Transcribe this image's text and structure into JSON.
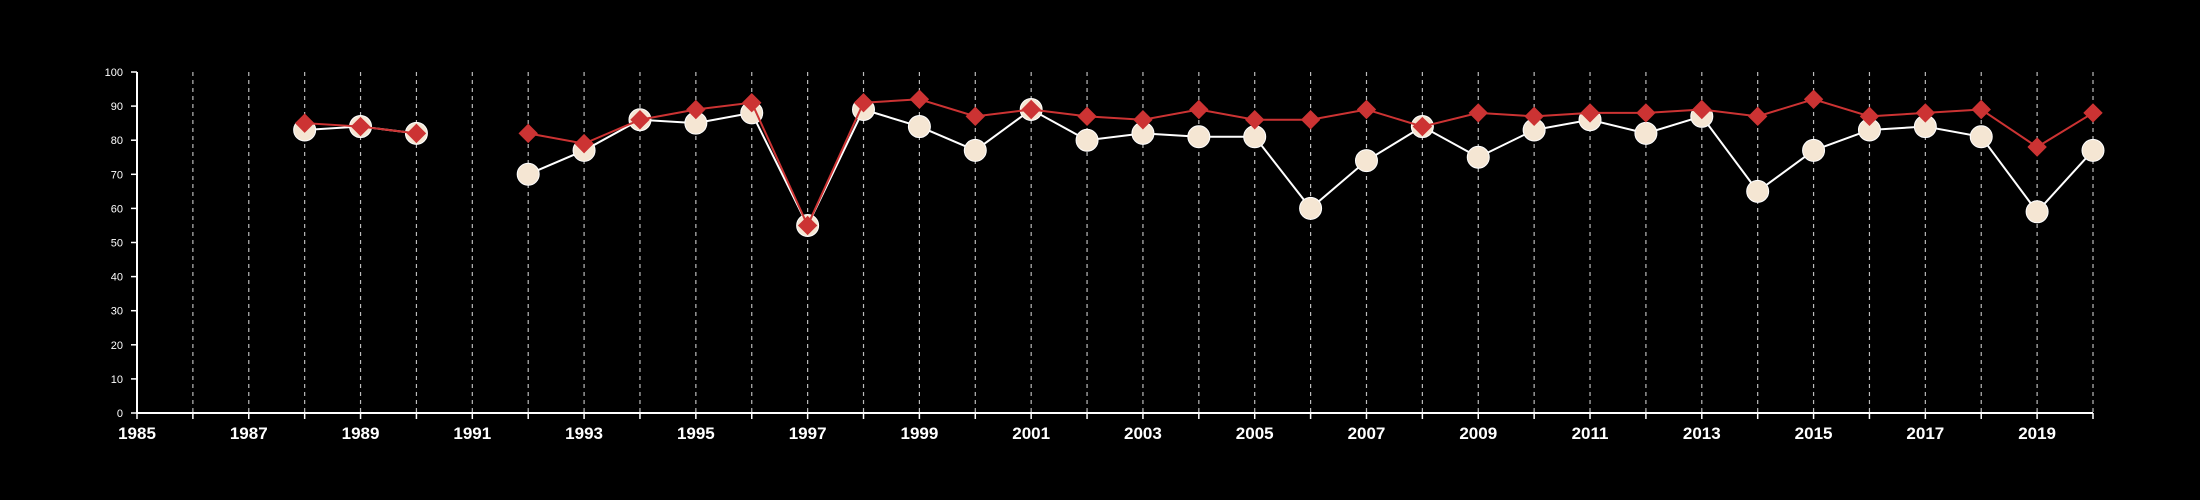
{
  "chart_data": {
    "type": "line",
    "title": "",
    "xlabel": "",
    "ylabel": "",
    "xlim": [
      1985,
      2020
    ],
    "ylim": [
      0,
      100
    ],
    "x_ticks": [
      1985,
      1986,
      1987,
      1988,
      1989,
      1990,
      1991,
      1992,
      1993,
      1994,
      1995,
      1996,
      1997,
      1998,
      1999,
      2000,
      2001,
      2002,
      2003,
      2004,
      2005,
      2006,
      2007,
      2008,
      2009,
      2010,
      2011,
      2012,
      2013,
      2014,
      2015,
      2016,
      2017,
      2018,
      2019,
      2020
    ],
    "x_tick_labels": [
      "1985",
      "1987",
      "1989",
      "1991",
      "1993",
      "1995",
      "1997",
      "1999",
      "2001",
      "2003",
      "2005",
      "2007",
      "2009",
      "2011",
      "2013",
      "2015",
      "2017",
      "2019"
    ],
    "y_ticks": [
      0,
      10,
      20,
      30,
      40,
      50,
      60,
      70,
      80,
      90,
      100
    ],
    "y_tick_labels": [
      "0",
      "10",
      "20",
      "30",
      "40",
      "50",
      "60",
      "70",
      "80",
      "90",
      "100"
    ],
    "grid": "vertical dashed",
    "legend": "none",
    "x": [
      1988,
      1989,
      1990,
      1991,
      1992,
      1993,
      1994,
      1995,
      1996,
      1997,
      1998,
      1999,
      2000,
      2001,
      2002,
      2003,
      2004,
      2005,
      2006,
      2007,
      2008,
      2009,
      2010,
      2011,
      2012,
      2013,
      2014,
      2015,
      2016,
      2017,
      2018,
      2019,
      2020
    ],
    "series": [
      {
        "marker": "diamond",
        "color": "#cc3333",
        "values": [
          85,
          84,
          82,
          null,
          82,
          79,
          86,
          89,
          91,
          55,
          91,
          92,
          87,
          89,
          87,
          86,
          89,
          86,
          86,
          89,
          84,
          88,
          87,
          88,
          88,
          89,
          87,
          92,
          87,
          88,
          89,
          78,
          88
        ]
      },
      {
        "marker": "circle",
        "color": "#f5e6d3",
        "values": [
          83,
          84,
          82,
          null,
          70,
          77,
          86,
          85,
          88,
          55,
          89,
          84,
          77,
          89,
          80,
          82,
          81,
          81,
          60,
          74,
          84,
          75,
          83,
          86,
          82,
          87,
          65,
          77,
          83,
          84,
          81,
          59,
          77
        ]
      }
    ]
  }
}
